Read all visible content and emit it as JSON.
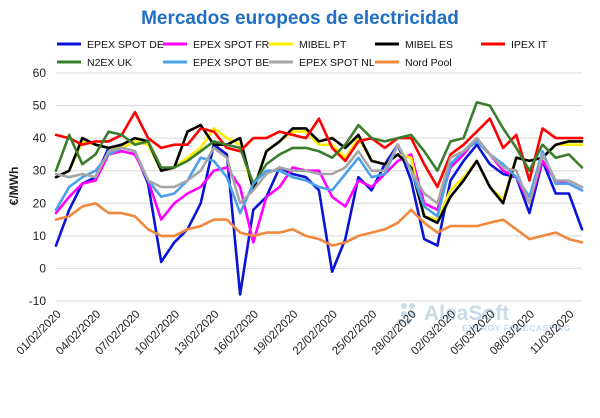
{
  "chart_data": {
    "type": "line",
    "title": "Mercados europeos de electricidad",
    "ylabel": "€/MWh",
    "xlabel": "",
    "ylim": [
      -10,
      60
    ],
    "yticks": [
      -10,
      0,
      10,
      20,
      30,
      40,
      50,
      60
    ],
    "grid": true,
    "legend_position": "top",
    "x": [
      "01/02/2020",
      "02/02/2020",
      "03/02/2020",
      "04/02/2020",
      "05/02/2020",
      "06/02/2020",
      "07/02/2020",
      "08/02/2020",
      "09/02/2020",
      "10/02/2020",
      "11/02/2020",
      "12/02/2020",
      "13/02/2020",
      "14/02/2020",
      "15/02/2020",
      "16/02/2020",
      "17/02/2020",
      "18/02/2020",
      "19/02/2020",
      "20/02/2020",
      "21/02/2020",
      "22/02/2020",
      "23/02/2020",
      "24/02/2020",
      "25/02/2020",
      "26/02/2020",
      "27/02/2020",
      "28/02/2020",
      "29/02/2020",
      "01/03/2020",
      "02/03/2020",
      "03/03/2020",
      "04/03/2020",
      "05/03/2020",
      "06/03/2020",
      "07/03/2020",
      "08/03/2020",
      "09/03/2020",
      "10/03/2020",
      "11/03/2020",
      "12/03/2020"
    ],
    "xtick_labels": [
      "01/02/2020",
      "04/02/2020",
      "07/02/2020",
      "10/02/2020",
      "13/02/2020",
      "16/02/2020",
      "19/02/2020",
      "22/02/2020",
      "25/02/2020",
      "28/02/2020",
      "02/03/2020",
      "05/03/2020",
      "08/03/2020",
      "11/03/2020"
    ],
    "series": [
      {
        "name": "EPEX SPOT DE",
        "color": "#0a14d8",
        "values": [
          7,
          18,
          26,
          28,
          37,
          37,
          36,
          26,
          2,
          8,
          12,
          20,
          38,
          35,
          -8,
          18,
          22,
          31,
          29,
          28,
          24,
          -1,
          9,
          28,
          24,
          32,
          38,
          27,
          9,
          7,
          27,
          33,
          38,
          32,
          29,
          28,
          17,
          33,
          23,
          23,
          12
        ]
      },
      {
        "name": "EPEX SPOT FR",
        "color": "#ff00ff",
        "values": [
          17,
          22,
          26,
          27,
          35,
          36,
          35,
          27,
          15,
          20,
          23,
          25,
          30,
          31,
          25,
          8,
          22,
          25,
          31,
          30,
          30,
          22,
          19,
          27,
          25,
          29,
          33,
          35,
          20,
          18,
          31,
          35,
          40,
          35,
          30,
          28,
          20,
          33,
          27,
          26,
          24
        ]
      },
      {
        "name": "MIBEL PT",
        "color": "#ffee00",
        "values": [
          28,
          30,
          39,
          38,
          37,
          37,
          39,
          38,
          30,
          31,
          34,
          37,
          43,
          40,
          38,
          24,
          36,
          39,
          42,
          42,
          38,
          38,
          34,
          40,
          33,
          32,
          35,
          34,
          16,
          15,
          24,
          28,
          33,
          25,
          21,
          34,
          33,
          34,
          38,
          38,
          38
        ]
      },
      {
        "name": "MIBEL ES",
        "color": "#000000",
        "values": [
          28,
          30,
          40,
          38,
          37,
          38,
          40,
          39,
          30,
          31,
          42,
          44,
          38,
          38,
          40,
          24,
          36,
          39,
          43,
          43,
          39,
          40,
          37,
          41,
          33,
          32,
          35,
          31,
          16,
          14,
          22,
          27,
          33,
          25,
          20,
          34,
          33,
          34,
          38,
          39,
          39
        ]
      },
      {
        "name": "IPEX IT",
        "color": "#ff0000",
        "values": [
          41,
          40,
          38,
          39,
          39,
          41,
          48,
          40,
          37,
          38,
          38,
          43,
          42,
          37,
          36,
          40,
          40,
          42,
          41,
          40,
          46,
          37,
          33,
          39,
          40,
          37,
          40,
          40,
          32,
          25,
          35,
          38,
          42,
          46,
          37,
          41,
          27,
          43,
          40,
          40,
          40
        ]
      },
      {
        "name": "N2EX UK",
        "color": "#3a7d2c",
        "values": [
          30,
          41,
          32,
          35,
          42,
          41,
          38,
          39,
          31,
          31,
          33,
          36,
          39,
          38,
          37,
          26,
          32,
          35,
          37,
          37,
          36,
          34,
          38,
          44,
          40,
          39,
          40,
          41,
          36,
          30,
          39,
          40,
          51,
          50,
          43,
          37,
          30,
          38,
          34,
          35,
          31
        ]
      },
      {
        "name": "EPEX SPOT BE",
        "color": "#4aa0ea",
        "values": [
          18,
          25,
          28,
          30,
          35,
          37,
          36,
          27,
          22,
          23,
          27,
          34,
          33,
          28,
          17,
          26,
          30,
          30,
          28,
          27,
          25,
          24,
          29,
          34,
          28,
          29,
          38,
          30,
          19,
          16,
          32,
          36,
          39,
          35,
          32,
          28,
          22,
          36,
          26,
          26,
          24
        ]
      },
      {
        "name": "EPEX SPOT NL",
        "color": "#a6a6a6",
        "values": [
          29,
          28,
          29,
          28,
          36,
          37,
          36,
          27,
          25,
          25,
          27,
          30,
          37,
          34,
          20,
          24,
          29,
          31,
          30,
          30,
          29,
          29,
          31,
          36,
          30,
          30,
          38,
          30,
          23,
          20,
          34,
          36,
          40,
          35,
          31,
          30,
          20,
          35,
          27,
          27,
          25
        ]
      },
      {
        "name": "Nord Pool",
        "color": "#f0883e",
        "values": [
          15,
          16,
          19,
          20,
          17,
          17,
          16,
          12,
          10,
          10,
          12,
          13,
          15,
          15,
          11,
          10,
          11,
          11,
          12,
          10,
          9,
          7,
          8,
          10,
          11,
          12,
          14,
          18,
          14,
          11,
          13,
          13,
          13,
          14,
          15,
          12,
          9,
          10,
          11,
          9,
          8
        ]
      }
    ]
  },
  "watermark": {
    "brand": "AleaSoft",
    "tagline": "ENERGY FORECASTING"
  }
}
